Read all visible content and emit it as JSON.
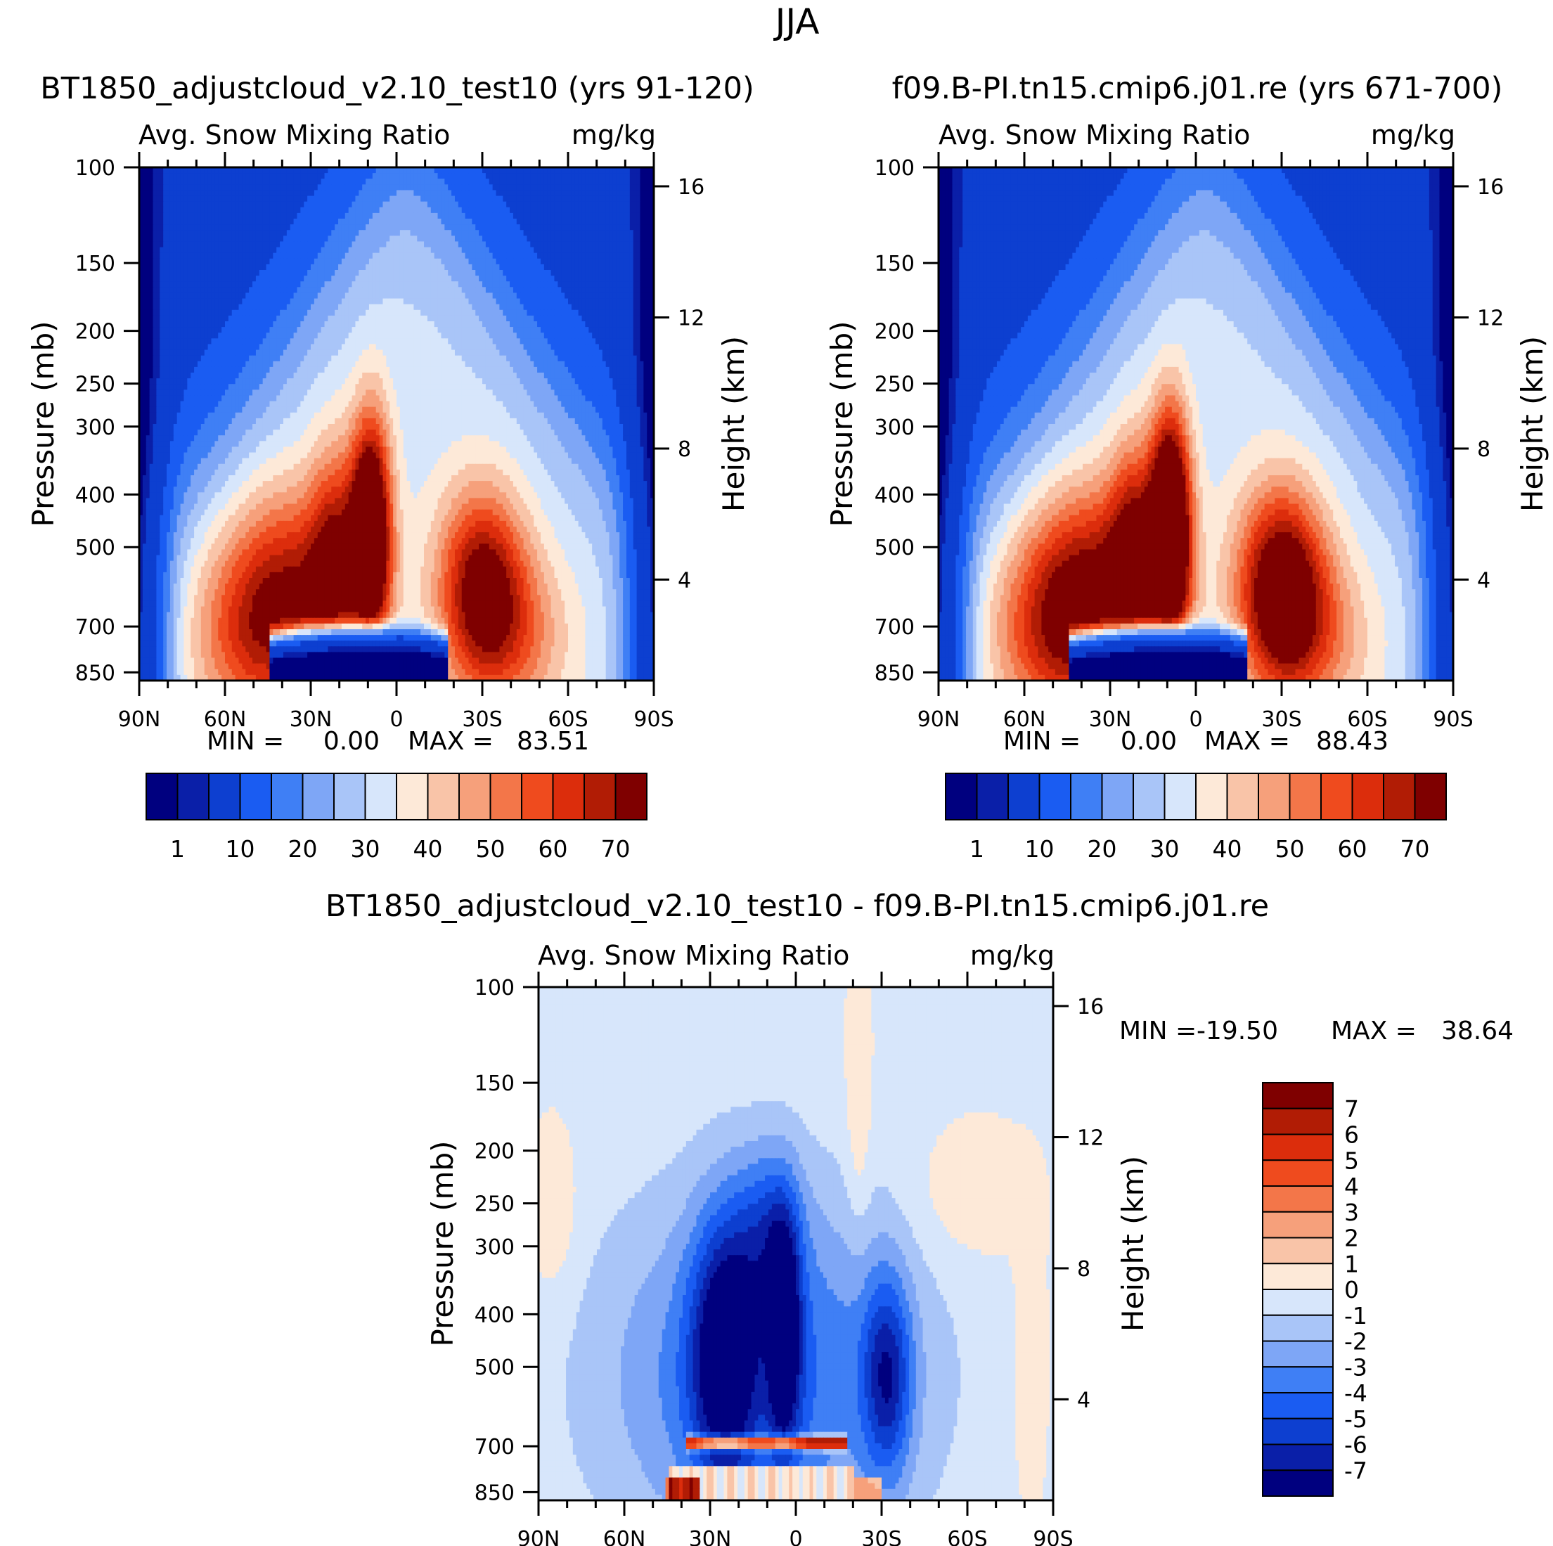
{
  "page_title": "JJA",
  "colors": {
    "scale_abs": [
      "#00007f",
      "#0a1fa8",
      "#0d3fd0",
      "#1a5cf2",
      "#3f7ff5",
      "#7ea6f6",
      "#a9c5f8",
      "#d7e6fb",
      "#fde9d8",
      "#f9c4a8",
      "#f6a07b",
      "#f37649",
      "#ef4b1e",
      "#dc2d0c",
      "#b11c05",
      "#7f0000"
    ],
    "scale_diff": [
      "#00007f",
      "#0a1fa8",
      "#0d3fd0",
      "#1a5cf2",
      "#3f7ff5",
      "#7ea6f6",
      "#a9c5f8",
      "#d7e6fb",
      "#fde9d8",
      "#f9c4a8",
      "#f6a07b",
      "#f37649",
      "#ef4b1e",
      "#dc2d0c",
      "#b11c05",
      "#7f0000"
    ]
  },
  "chart_data": [
    {
      "id": "panel1",
      "type": "heatmap",
      "title": "BT1850_adjustcloud_v2.10_test10 (yrs 91-120)",
      "subtitle_left": "Avg. Snow Mixing Ratio",
      "subtitle_right": "mg/kg",
      "ylabel": "Pressure (mb)",
      "ylabel_right": "Height (km)",
      "x_ticks": [
        "90N",
        "60N",
        "30N",
        "0",
        "30S",
        "60S",
        "90S"
      ],
      "y_ticks": [
        "100",
        "150",
        "200",
        "250",
        "300",
        "400",
        "500",
        "700",
        "850"
      ],
      "y_ticks_right": [
        "16",
        "12",
        "8",
        "4"
      ],
      "min_label": "MIN =",
      "min_value": "0.00",
      "max_label": "MAX =",
      "max_value": "83.51",
      "colorbar_labels": [
        "1",
        "10",
        "20",
        "30",
        "40",
        "50",
        "60",
        "70"
      ],
      "levels": [
        0.5,
        1,
        5,
        10,
        15,
        20,
        25,
        30,
        35,
        40,
        45,
        50,
        55,
        60,
        65,
        70
      ],
      "peak_value": 83.51
    },
    {
      "id": "panel2",
      "type": "heatmap",
      "title": "f09.B-PI.tn15.cmip6.j01.re (yrs 671-700)",
      "subtitle_left": "Avg. Snow Mixing Ratio",
      "subtitle_right": "mg/kg",
      "ylabel": "Pressure (mb)",
      "ylabel_right": "Height (km)",
      "x_ticks": [
        "90N",
        "60N",
        "30N",
        "0",
        "30S",
        "60S",
        "90S"
      ],
      "y_ticks": [
        "100",
        "150",
        "200",
        "250",
        "300",
        "400",
        "500",
        "700",
        "850"
      ],
      "y_ticks_right": [
        "16",
        "12",
        "8",
        "4"
      ],
      "min_label": "MIN =",
      "min_value": "0.00",
      "max_label": "MAX =",
      "max_value": "88.43",
      "colorbar_labels": [
        "1",
        "10",
        "20",
        "30",
        "40",
        "50",
        "60",
        "70"
      ],
      "levels": [
        0.5,
        1,
        5,
        10,
        15,
        20,
        25,
        30,
        35,
        40,
        45,
        50,
        55,
        60,
        65,
        70
      ],
      "peak_value": 88.43
    },
    {
      "id": "panel3",
      "type": "heatmap",
      "title": "BT1850_adjustcloud_v2.10_test10 - f09.B-PI.tn15.cmip6.j01.re",
      "subtitle_left": "Avg. Snow Mixing Ratio",
      "subtitle_right": "mg/kg",
      "ylabel": "Pressure (mb)",
      "ylabel_right": "Height (km)",
      "x_ticks": [
        "90N",
        "60N",
        "30N",
        "0",
        "30S",
        "60S",
        "90S"
      ],
      "y_ticks": [
        "100",
        "150",
        "200",
        "250",
        "300",
        "400",
        "500",
        "700",
        "850"
      ],
      "y_ticks_right": [
        "16",
        "12",
        "8",
        "4"
      ],
      "min_label": "MIN =",
      "min_value": "-19.50",
      "max_label": "MAX =",
      "max_value": "38.64",
      "colorbar_labels": [
        "7",
        "6",
        "5",
        "4",
        "3",
        "2",
        "1",
        "0",
        "-1",
        "-2",
        "-3",
        "-4",
        "-5",
        "-6",
        "-7"
      ],
      "levels": [
        -7,
        -6,
        -5,
        -4,
        -3,
        -2,
        -1,
        0,
        1,
        2,
        3,
        4,
        5,
        6,
        7
      ]
    }
  ]
}
